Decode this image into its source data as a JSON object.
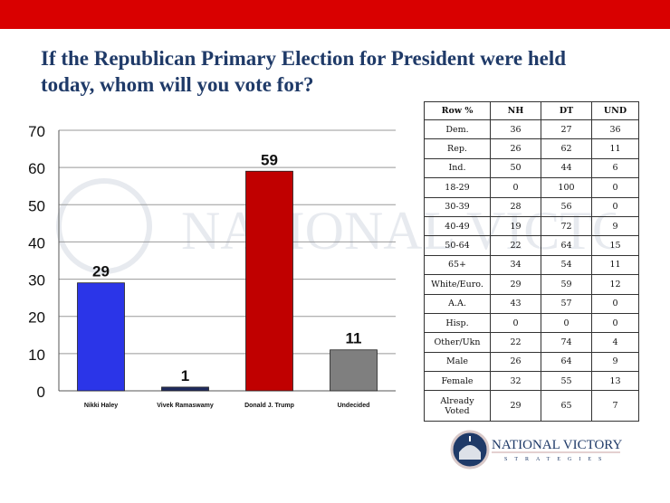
{
  "title": "If the Republican Primary Election for President were held today, whom will you vote for?",
  "chart_data": {
    "type": "bar",
    "title": "",
    "xlabel": "",
    "ylabel": "",
    "categories": [
      "Nikki Haley",
      "Vivek Ramaswamy",
      "Donald J. Trump",
      "Undecided"
    ],
    "values": [
      29,
      1,
      59,
      11
    ],
    "colors": [
      "#2b35e8",
      "#1f2a5e",
      "#c00000",
      "#7f7f7f"
    ],
    "ylim": [
      0,
      70
    ],
    "yticks": [
      0,
      10,
      20,
      30,
      40,
      50,
      60,
      70
    ],
    "grid": true,
    "data_labels": true
  },
  "table": {
    "headers": [
      "Row %",
      "NH",
      "DT",
      "UND"
    ],
    "rows": [
      [
        "Dem.",
        "36",
        "27",
        "36"
      ],
      [
        "Rep.",
        "26",
        "62",
        "11"
      ],
      [
        "Ind.",
        "50",
        "44",
        "6"
      ],
      [
        "18-29",
        "0",
        "100",
        "0"
      ],
      [
        "30-39",
        "28",
        "56",
        "0"
      ],
      [
        "40-49",
        "19",
        "72",
        "9"
      ],
      [
        "50-64",
        "22",
        "64",
        "15"
      ],
      [
        "65+",
        "34",
        "54",
        "11"
      ],
      [
        "White/Euro.",
        "29",
        "59",
        "12"
      ],
      [
        "A.A.",
        "43",
        "57",
        "0"
      ],
      [
        "Hisp.",
        "0",
        "0",
        "0"
      ],
      [
        "Other/Ukn",
        "22",
        "74",
        "4"
      ],
      [
        "Male",
        "26",
        "64",
        "9"
      ],
      [
        "Female",
        "32",
        "55",
        "13"
      ],
      [
        "Already Voted",
        "29",
        "65",
        "7"
      ]
    ]
  },
  "logo": {
    "name": "NATIONAL VICTORY",
    "sub": "STRATEGIES"
  },
  "colors": {
    "topbar": "#d90000",
    "title": "#1f3a68"
  }
}
